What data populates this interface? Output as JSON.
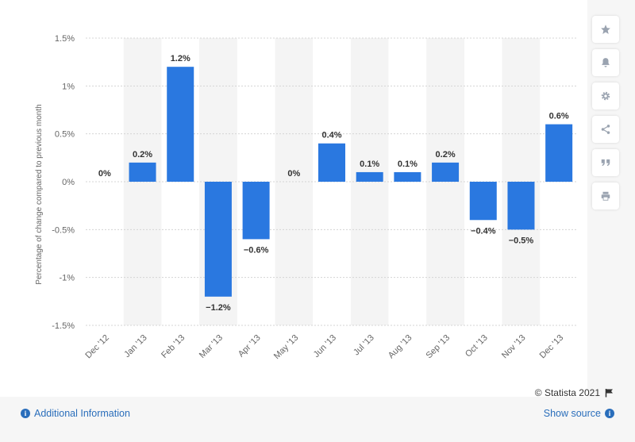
{
  "chart_data": {
    "type": "bar",
    "categories": [
      "Dec '12",
      "Jan '13",
      "Feb '13",
      "Mar '13",
      "Apr '13",
      "May '13",
      "Jun '13",
      "Jul '13",
      "Aug '13",
      "Sep '13",
      "Oct '13",
      "Nov '13",
      "Dec '13"
    ],
    "values": [
      0,
      0.2,
      1.2,
      -1.2,
      -0.6,
      0,
      0.4,
      0.1,
      0.1,
      0.2,
      -0.4,
      -0.5,
      0.6
    ],
    "data_labels": [
      "0%",
      "0.2%",
      "1.2%",
      "−1.2%",
      "−0.6%",
      "0%",
      "0.4%",
      "0.1%",
      "0.1%",
      "0.2%",
      "−0.4%",
      "−0.5%",
      "0.6%"
    ],
    "ylabel": "Percentage of change compared to previous month",
    "ylim": [
      -1.5,
      1.5
    ],
    "yticks": [
      1.5,
      1,
      0.5,
      0,
      -0.5,
      -1,
      -1.5
    ],
    "ytick_labels": [
      "1.5%",
      "1%",
      "0.5%",
      "0%",
      "-0.5%",
      "-1%",
      "-1.5%"
    ],
    "grid": true,
    "bar_color": "#2a78e0"
  },
  "footer": {
    "credit": "© Statista 2021",
    "additional_info": "Additional Information",
    "show_source": "Show source"
  },
  "toolbar": {
    "icons": [
      "star-icon",
      "bell-icon",
      "gear-icon",
      "share-icon",
      "quote-icon",
      "print-icon"
    ]
  }
}
